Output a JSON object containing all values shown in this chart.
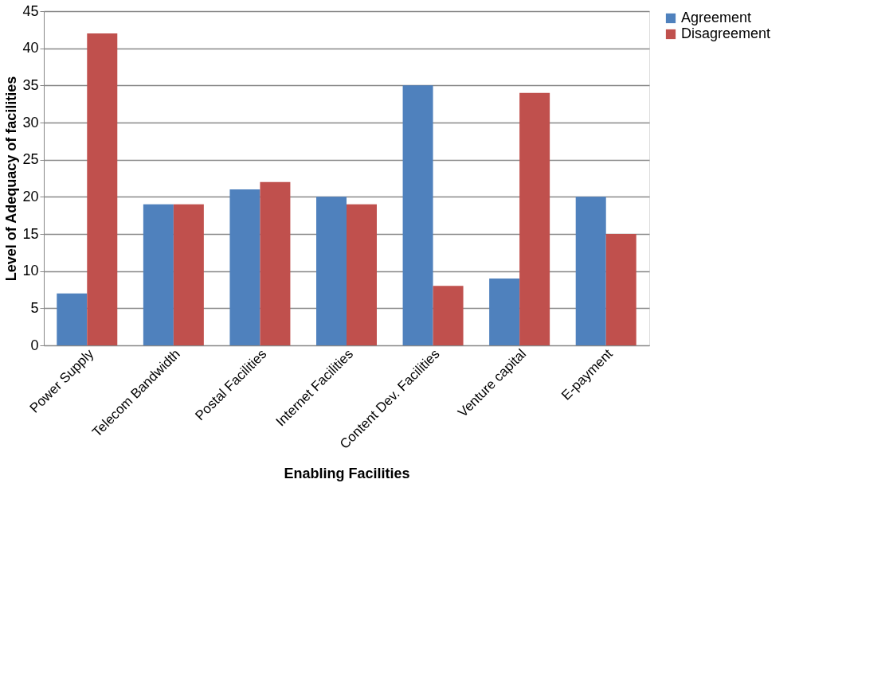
{
  "chart_data": {
    "type": "bar",
    "xlabel": "Enabling Facilities",
    "ylabel": "Level of Adequacy of facilities",
    "categories": [
      "Power Supply",
      "Telecom Bandwidth",
      "Postal Facilities",
      "Internet Facilities",
      "Content Dev. Facilities",
      "Venture capital",
      "E-payment"
    ],
    "series": [
      {
        "name": "Agreement",
        "color": "#4f81bd",
        "values": [
          7,
          19,
          21,
          20,
          35,
          9,
          20
        ]
      },
      {
        "name": "Disagreement",
        "color": "#c0504d",
        "values": [
          42,
          19,
          22,
          19,
          8,
          34,
          15
        ]
      }
    ],
    "ylim": [
      0,
      45
    ],
    "yticks": [
      0,
      5,
      10,
      15,
      20,
      25,
      30,
      35,
      40,
      45
    ],
    "grid": "y",
    "legend": "right"
  }
}
